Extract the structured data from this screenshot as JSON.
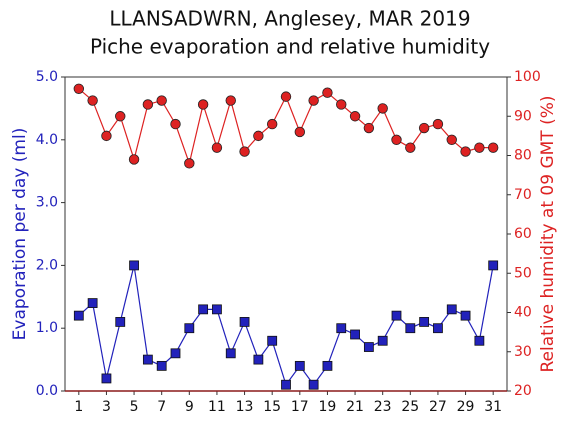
{
  "chart_data": {
    "type": "line",
    "title": "LLANSADWRN, Anglesey, MAR 2019",
    "subtitle": "Piche evaporation and relative humidity",
    "y_label": "Evaporation per day (ml)",
    "y2_label": "Relative humidity at 09 GMT (%)",
    "x": [
      1,
      2,
      3,
      4,
      5,
      6,
      7,
      8,
      9,
      10,
      11,
      12,
      13,
      14,
      15,
      16,
      17,
      18,
      19,
      20,
      21,
      22,
      23,
      24,
      25,
      26,
      27,
      28,
      29,
      30,
      31
    ],
    "xlim": [
      0,
      32
    ],
    "xticks": [
      1,
      3,
      5,
      7,
      9,
      11,
      13,
      15,
      17,
      19,
      21,
      23,
      25,
      27,
      29,
      31
    ],
    "ylim": [
      0,
      5
    ],
    "yticks": [
      {
        "value": 0,
        "label": "0.0"
      },
      {
        "value": 1,
        "label": "1.0"
      },
      {
        "value": 2,
        "label": "2.0"
      },
      {
        "value": 3,
        "label": "3.0"
      },
      {
        "value": 4,
        "label": "4.0"
      },
      {
        "value": 5,
        "label": "5.0"
      }
    ],
    "y2lim": [
      20,
      100
    ],
    "y2ticks": [
      20,
      30,
      40,
      50,
      60,
      70,
      80,
      90,
      100
    ],
    "series": [
      {
        "color": "#2222bb",
        "marker": "square",
        "values": [
          1.2,
          1.4,
          0.2,
          1.1,
          2.0,
          0.5,
          0.4,
          0.6,
          1.0,
          1.3,
          1.3,
          0.6,
          1.1,
          0.5,
          0.8,
          0.1,
          0.4,
          0.1,
          0.4,
          1.0,
          0.9,
          0.7,
          0.8,
          1.2,
          1.0,
          1.1,
          1.0,
          1.3,
          1.2,
          0.8,
          2.0
        ]
      },
      {
        "color": "#dd2222",
        "marker": "circle",
        "axis": "y2",
        "values": [
          97,
          94,
          85,
          90,
          79,
          93,
          94,
          88,
          78,
          93,
          82,
          94,
          81,
          85,
          88,
          95,
          86,
          94,
          96,
          93,
          90,
          87,
          92,
          84,
          82,
          87,
          88,
          84,
          81,
          82,
          82
        ]
      }
    ]
  }
}
